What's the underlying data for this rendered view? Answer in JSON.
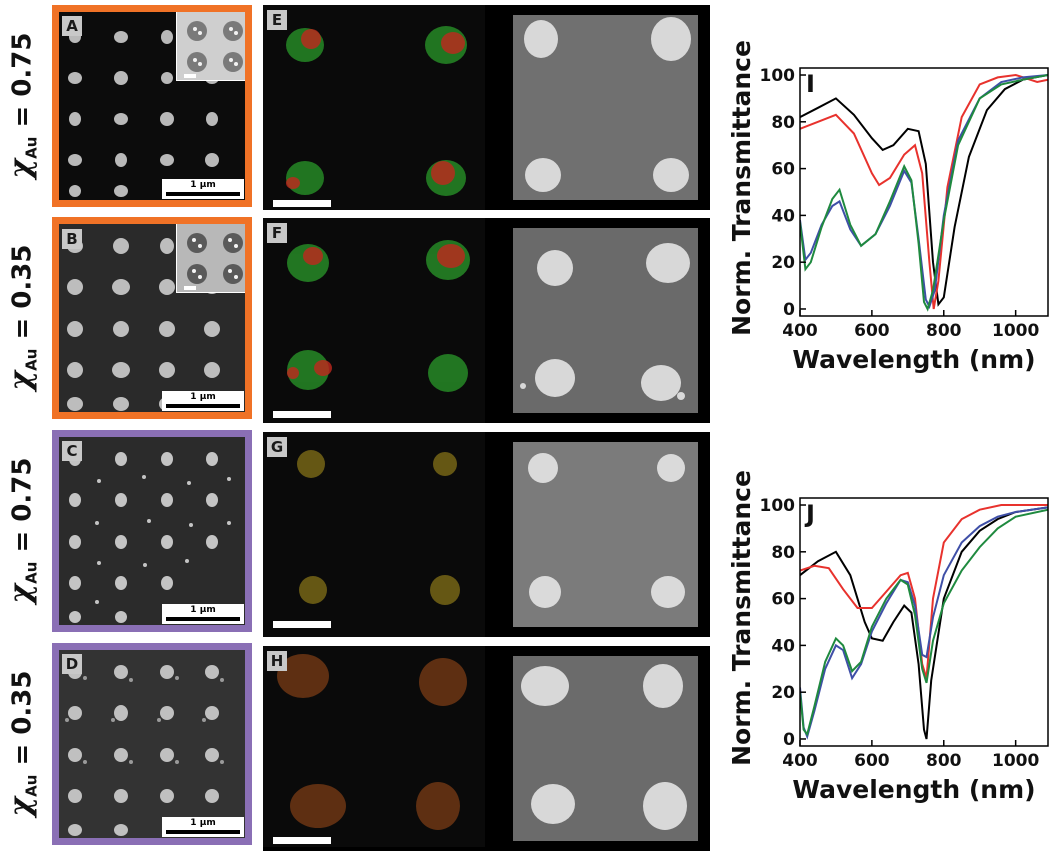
{
  "row_labels": [
    {
      "symbol": "χ",
      "sub": "Au",
      "text": " = 0.75"
    },
    {
      "symbol": "χ",
      "sub": "Au",
      "text": " = 0.35"
    },
    {
      "symbol": "χ",
      "sub": "Au",
      "text": " = 0.75"
    },
    {
      "symbol": "χ",
      "sub": "Au",
      "text": " = 0.35"
    }
  ],
  "panel_letters": {
    "A": "A",
    "B": "B",
    "C": "C",
    "D": "D",
    "E": "E",
    "F": "F",
    "G": "G",
    "H": "H",
    "I": "I",
    "J": "J"
  },
  "scalebar_label": "1 µm",
  "colors": {
    "orange_frame": "#f07226",
    "purple_frame": "#8a6fb5",
    "line_black": "#000000",
    "line_red": "#e8322d",
    "line_blue": "#3f4fa7",
    "line_green": "#1f8a3f",
    "eds_red": "#c0281e",
    "eds_green": "#2a9a2a",
    "eds_yellow": "#a28a1a"
  },
  "chart_data": [
    {
      "type": "line",
      "panel": "I",
      "title": "",
      "xlabel": "Wavelength (nm)",
      "ylabel": "Norm. Transmittance",
      "xlim": [
        400,
        1090
      ],
      "ylim": [
        -3,
        103
      ],
      "xticks": [
        "400",
        "600",
        "800",
        "1000"
      ],
      "yticks": [
        "0",
        "20",
        "40",
        "60",
        "80",
        "100"
      ],
      "series": [
        {
          "color": "black",
          "points": [
            [
              400,
              82
            ],
            [
              450,
              86
            ],
            [
              500,
              90
            ],
            [
              550,
              83
            ],
            [
              600,
              73
            ],
            [
              630,
              68
            ],
            [
              660,
              70
            ],
            [
              700,
              77
            ],
            [
              730,
              76
            ],
            [
              750,
              62
            ],
            [
              770,
              20
            ],
            [
              785,
              2
            ],
            [
              800,
              5
            ],
            [
              830,
              35
            ],
            [
              870,
              65
            ],
            [
              920,
              85
            ],
            [
              970,
              94
            ],
            [
              1020,
              98
            ],
            [
              1090,
              100
            ]
          ]
        },
        {
          "color": "red",
          "points": [
            [
              400,
              77
            ],
            [
              450,
              80
            ],
            [
              500,
              83
            ],
            [
              550,
              75
            ],
            [
              600,
              58
            ],
            [
              620,
              53
            ],
            [
              650,
              56
            ],
            [
              690,
              66
            ],
            [
              720,
              70
            ],
            [
              740,
              58
            ],
            [
              760,
              20
            ],
            [
              772,
              0
            ],
            [
              785,
              12
            ],
            [
              810,
              52
            ],
            [
              850,
              82
            ],
            [
              900,
              96
            ],
            [
              950,
              99
            ],
            [
              1000,
              100
            ],
            [
              1060,
              97
            ],
            [
              1090,
              98
            ]
          ]
        },
        {
          "color": "blue",
          "points": [
            [
              400,
              38
            ],
            [
              415,
              21
            ],
            [
              430,
              24
            ],
            [
              460,
              36
            ],
            [
              490,
              44
            ],
            [
              510,
              46
            ],
            [
              540,
              34
            ],
            [
              570,
              27
            ],
            [
              610,
              32
            ],
            [
              650,
              44
            ],
            [
              690,
              59
            ],
            [
              710,
              54
            ],
            [
              730,
              30
            ],
            [
              750,
              4
            ],
            [
              760,
              1
            ],
            [
              775,
              8
            ],
            [
              800,
              40
            ],
            [
              840,
              72
            ],
            [
              900,
              90
            ],
            [
              960,
              97
            ],
            [
              1020,
              99
            ],
            [
              1090,
              100
            ]
          ]
        },
        {
          "color": "green",
          "points": [
            [
              400,
              37
            ],
            [
              415,
              17
            ],
            [
              430,
              20
            ],
            [
              460,
              35
            ],
            [
              490,
              47
            ],
            [
              510,
              51
            ],
            [
              540,
              36
            ],
            [
              570,
              27
            ],
            [
              610,
              32
            ],
            [
              650,
              46
            ],
            [
              690,
              61
            ],
            [
              710,
              55
            ],
            [
              730,
              28
            ],
            [
              745,
              3
            ],
            [
              755,
              0
            ],
            [
              770,
              8
            ],
            [
              800,
              38
            ],
            [
              840,
              70
            ],
            [
              900,
              90
            ],
            [
              960,
              96
            ],
            [
              1020,
              98
            ],
            [
              1090,
              100
            ]
          ]
        }
      ]
    },
    {
      "type": "line",
      "panel": "J",
      "title": "",
      "xlabel": "Wavelength (nm)",
      "ylabel": "Norm. Transmittance",
      "xlim": [
        400,
        1090
      ],
      "ylim": [
        -3,
        103
      ],
      "xticks": [
        "400",
        "600",
        "800",
        "1000"
      ],
      "yticks": [
        "0",
        "20",
        "40",
        "60",
        "80",
        "100"
      ],
      "series": [
        {
          "color": "black",
          "points": [
            [
              400,
              70
            ],
            [
              450,
              76
            ],
            [
              500,
              80
            ],
            [
              540,
              70
            ],
            [
              580,
              50
            ],
            [
              600,
              43
            ],
            [
              630,
              42
            ],
            [
              660,
              50
            ],
            [
              690,
              57
            ],
            [
              710,
              54
            ],
            [
              730,
              32
            ],
            [
              745,
              4
            ],
            [
              752,
              0
            ],
            [
              765,
              25
            ],
            [
              800,
              60
            ],
            [
              850,
              80
            ],
            [
              900,
              89
            ],
            [
              950,
              94
            ],
            [
              1000,
              97
            ],
            [
              1090,
              99
            ]
          ]
        },
        {
          "color": "red",
          "points": [
            [
              400,
              72
            ],
            [
              440,
              74
            ],
            [
              480,
              73
            ],
            [
              520,
              64
            ],
            [
              560,
              56
            ],
            [
              600,
              56
            ],
            [
              640,
              63
            ],
            [
              680,
              70
            ],
            [
              700,
              71
            ],
            [
              720,
              60
            ],
            [
              740,
              32
            ],
            [
              752,
              26
            ],
            [
              770,
              60
            ],
            [
              800,
              84
            ],
            [
              850,
              94
            ],
            [
              900,
              98
            ],
            [
              960,
              100
            ],
            [
              1090,
              100
            ]
          ]
        },
        {
          "color": "blue",
          "points": [
            [
              400,
              22
            ],
            [
              410,
              5
            ],
            [
              420,
              1
            ],
            [
              440,
              12
            ],
            [
              470,
              30
            ],
            [
              500,
              40
            ],
            [
              520,
              38
            ],
            [
              545,
              26
            ],
            [
              570,
              32
            ],
            [
              600,
              46
            ],
            [
              640,
              58
            ],
            [
              680,
              68
            ],
            [
              700,
              67
            ],
            [
              720,
              57
            ],
            [
              740,
              36
            ],
            [
              752,
              35
            ],
            [
              770,
              52
            ],
            [
              800,
              70
            ],
            [
              850,
              84
            ],
            [
              900,
              91
            ],
            [
              950,
              95
            ],
            [
              1000,
              97
            ],
            [
              1090,
              99
            ]
          ]
        },
        {
          "color": "green",
          "points": [
            [
              400,
              20
            ],
            [
              410,
              4
            ],
            [
              420,
              2
            ],
            [
              440,
              14
            ],
            [
              470,
              33
            ],
            [
              500,
              43
            ],
            [
              520,
              40
            ],
            [
              545,
              29
            ],
            [
              570,
              33
            ],
            [
              600,
              48
            ],
            [
              640,
              60
            ],
            [
              680,
              68
            ],
            [
              700,
              66
            ],
            [
              720,
              53
            ],
            [
              740,
              30
            ],
            [
              752,
              24
            ],
            [
              770,
              42
            ],
            [
              800,
              58
            ],
            [
              850,
              72
            ],
            [
              900,
              82
            ],
            [
              950,
              90
            ],
            [
              1000,
              95
            ],
            [
              1090,
              98
            ]
          ]
        }
      ]
    }
  ]
}
